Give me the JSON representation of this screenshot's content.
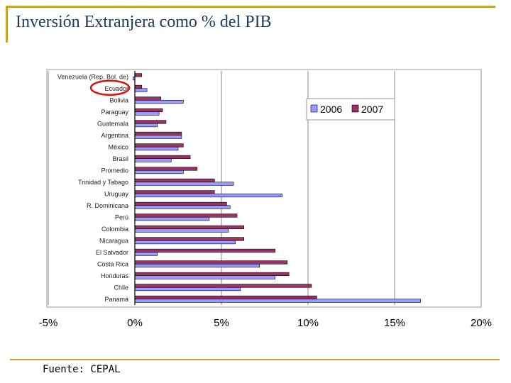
{
  "slide": {
    "title": "Inversión Extranjera como % del PIB",
    "source": "Fuente: CEPAL"
  },
  "colors": {
    "s2006": "#9999ff",
    "s2007": "#993366",
    "highlight": "#e01010",
    "gold": "#c9a227"
  },
  "chart_data": {
    "type": "bar",
    "orientation": "horizontal",
    "categories": [
      "Venezuela (Rep. Bol. de)",
      "Ecuador",
      "Bolivia",
      "Paraguay",
      "Guatemala",
      "Argentina",
      "México",
      "Brasil",
      "Promedio",
      "Trinidad y Tabago",
      "Uruguay",
      "R. Dominicana",
      "Perú",
      "Colombia",
      "Nicaragua",
      "El Salvador",
      "Costa Rica",
      "Honduras",
      "Chile",
      "Panamá"
    ],
    "series": [
      {
        "name": "2006",
        "values": [
          -0.1,
          0.7,
          2.8,
          1.4,
          1.3,
          2.7,
          2.5,
          2.1,
          2.8,
          5.7,
          8.5,
          5.5,
          4.3,
          5.4,
          5.8,
          1.3,
          7.2,
          8.1,
          6.1,
          16.5
        ]
      },
      {
        "name": "2007",
        "values": [
          0.4,
          0.4,
          1.5,
          1.6,
          1.8,
          2.7,
          2.8,
          3.2,
          3.6,
          4.6,
          4.6,
          5.3,
          5.9,
          6.3,
          6.3,
          8.1,
          8.8,
          8.9,
          10.2,
          10.5
        ]
      }
    ],
    "xlim": [
      -5,
      20
    ],
    "xticks": [
      "-5%",
      "0%",
      "5%",
      "10%",
      "15%",
      "20%"
    ],
    "xtick_values": [
      -5,
      0,
      5,
      10,
      15,
      20
    ],
    "highlighted_category": "Ecuador",
    "legend": "top-right",
    "grid": true
  }
}
